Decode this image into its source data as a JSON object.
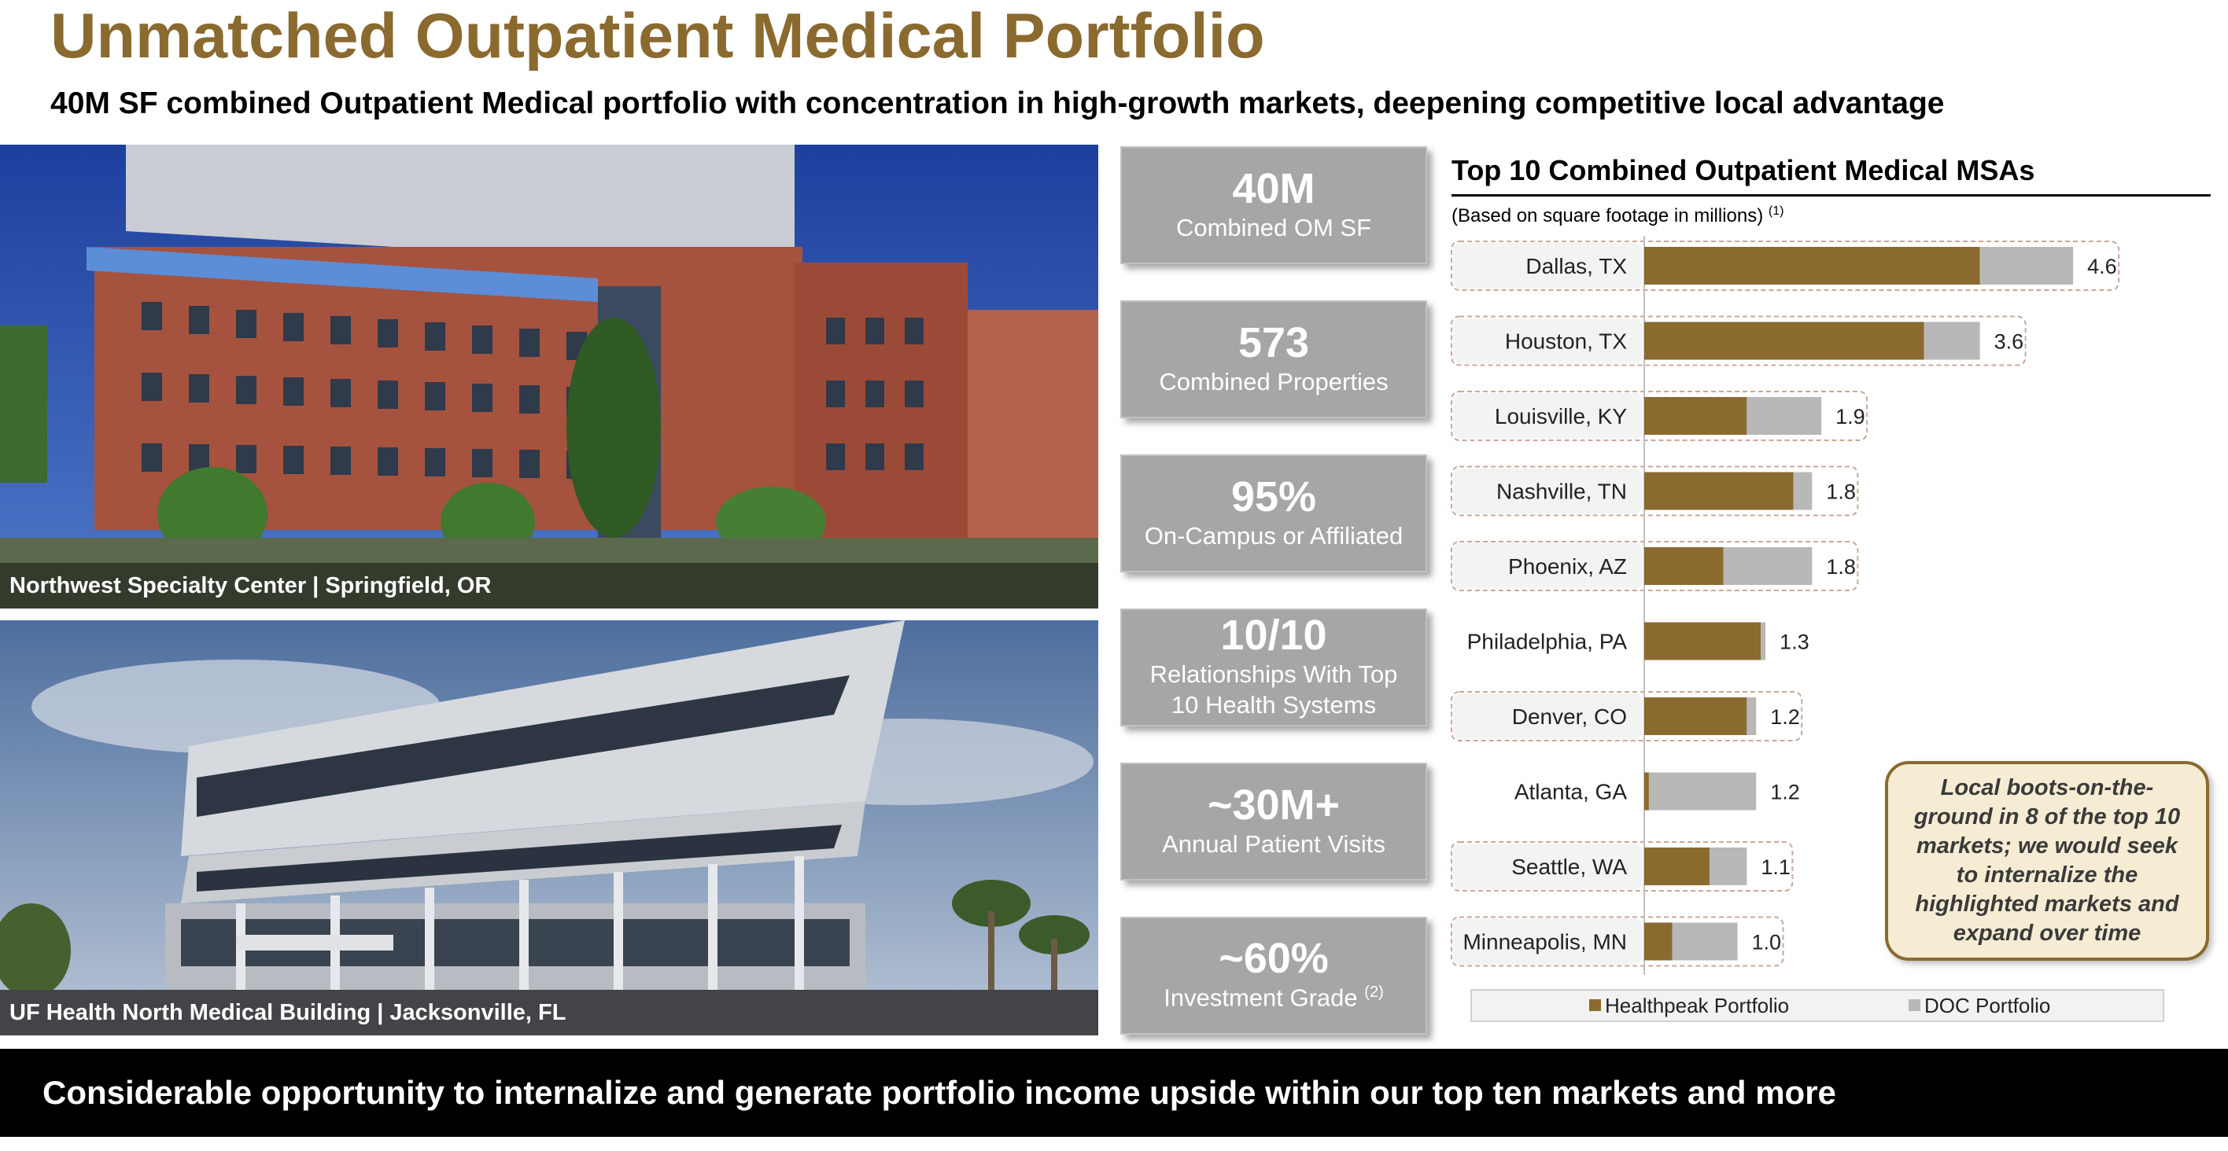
{
  "header": {
    "title": "Unmatched Outpatient Medical Portfolio",
    "subtitle": "40M SF combined Outpatient Medical portfolio with concentration in high-growth markets, deepening competitive local advantage"
  },
  "photos": [
    {
      "caption": "Northwest Specialty Center | Springfield, OR"
    },
    {
      "caption": "UF Health North Medical Building | Jacksonville, FL"
    }
  ],
  "stats": [
    {
      "value": "40M",
      "label": "Combined OM SF",
      "note": ""
    },
    {
      "value": "573",
      "label": "Combined Properties",
      "note": ""
    },
    {
      "value": "95%",
      "label": "On-Campus or Affiliated",
      "note": ""
    },
    {
      "value": "10/10",
      "label": "Relationships With Top 10 Health Systems",
      "note": ""
    },
    {
      "value": "~30M+",
      "label": "Annual Patient Visits",
      "note": ""
    },
    {
      "value": "~60%",
      "label": "Investment Grade",
      "note": "(2)"
    }
  ],
  "chart_data": {
    "type": "bar",
    "orientation": "horizontal",
    "stacked": true,
    "title": "Top 10 Combined Outpatient Medical MSAs",
    "subtitle": "(Based on square footage in millions)",
    "subtitle_note": "(1)",
    "categories": [
      "Dallas, TX",
      "Houston, TX",
      "Louisville, KY",
      "Nashville, TN",
      "Phoenix, AZ",
      "Philadelphia, PA",
      "Denver, CO",
      "Atlanta, GA",
      "Seattle, WA",
      "Minneapolis, MN"
    ],
    "totals": [
      "4.6",
      "3.6",
      "1.9",
      "1.8",
      "1.8",
      "1.3",
      "1.2",
      "1.2",
      "1.1",
      "1.0"
    ],
    "highlighted": [
      true,
      true,
      true,
      true,
      true,
      false,
      true,
      false,
      true,
      true
    ],
    "series": [
      {
        "name": "Healthpeak Portfolio",
        "color": "#8b6a30",
        "values": [
          3.6,
          3.0,
          1.1,
          1.6,
          0.85,
          1.25,
          1.1,
          0.05,
          0.7,
          0.3
        ]
      },
      {
        "name": "DOC Portfolio",
        "color": "#b8b8b8",
        "values": [
          1.0,
          0.6,
          0.8,
          0.2,
          0.95,
          0.05,
          0.1,
          1.15,
          0.4,
          0.7
        ]
      }
    ],
    "legend_position": "bottom",
    "grid": false
  },
  "callout": {
    "text": "Local boots-on-the-ground in 8 of the top 10 markets; we would seek to internalize the highlighted markets and expand over time"
  },
  "footer": {
    "banner": "Considerable opportunity to internalize and generate portfolio income upside within our top ten markets and more"
  }
}
